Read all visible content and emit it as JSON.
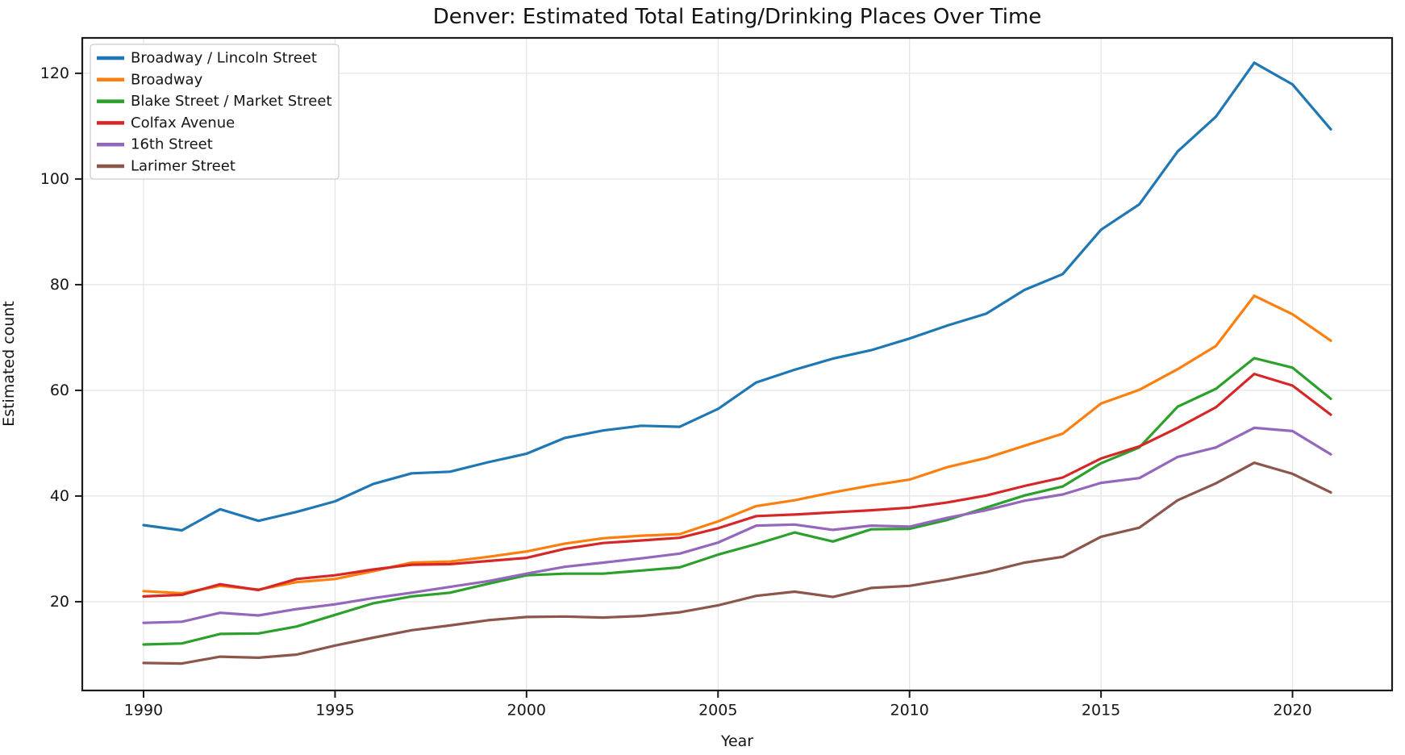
{
  "chart_data": {
    "type": "line",
    "title": "Denver: Estimated Total Eating/Drinking Places Over Time",
    "xlabel": "Year",
    "ylabel": "Estimated count",
    "grid": true,
    "legend_position": "upper left",
    "xlim": [
      1988.4,
      2022.6
    ],
    "ylim": [
      3.2,
      126.7
    ],
    "xtick_values": [
      1990,
      1995,
      2000,
      2005,
      2010,
      2015,
      2020
    ],
    "xtick_labels": [
      "1990",
      "1995",
      "2000",
      "2005",
      "2010",
      "2015",
      "2020"
    ],
    "ytick_values": [
      20,
      40,
      60,
      80,
      100,
      120
    ],
    "ytick_labels": [
      "20",
      "40",
      "60",
      "80",
      "100",
      "120"
    ],
    "x": [
      1990,
      1991,
      1992,
      1993,
      1994,
      1995,
      1996,
      1997,
      1998,
      1999,
      2000,
      2001,
      2002,
      2003,
      2004,
      2005,
      2006,
      2007,
      2008,
      2009,
      2010,
      2011,
      2012,
      2013,
      2014,
      2015,
      2016,
      2017,
      2018,
      2019,
      2020,
      2021
    ],
    "series": [
      {
        "name": "Broadway / Lincoln Street",
        "color": "#1f77b4",
        "values": [
          34.5,
          33.5,
          37.5,
          35.3,
          37.0,
          39.0,
          42.3,
          44.3,
          44.6,
          46.4,
          48.0,
          51.0,
          52.4,
          53.3,
          53.1,
          56.5,
          61.5,
          63.9,
          66.0,
          67.6,
          69.8,
          72.3,
          74.5,
          79.0,
          82.0,
          90.4,
          95.2,
          105.2,
          111.8,
          122.0,
          117.9,
          109.4
        ]
      },
      {
        "name": "Broadway",
        "color": "#ff7f0e",
        "values": [
          22.0,
          21.6,
          23.0,
          22.3,
          23.7,
          24.3,
          25.8,
          27.4,
          27.6,
          28.5,
          29.5,
          31.0,
          32.0,
          32.5,
          32.8,
          35.2,
          38.1,
          39.2,
          40.7,
          42.0,
          43.1,
          45.5,
          47.2,
          49.5,
          51.8,
          57.5,
          60.1,
          64.0,
          68.4,
          77.9,
          74.4,
          69.4
        ]
      },
      {
        "name": "Blake Street / Market Street",
        "color": "#2ca02c",
        "values": [
          11.9,
          12.1,
          13.9,
          14.0,
          15.3,
          17.5,
          19.7,
          21.0,
          21.7,
          23.4,
          25.0,
          25.3,
          25.3,
          25.9,
          26.5,
          28.9,
          30.9,
          33.1,
          31.4,
          33.7,
          33.8,
          35.5,
          37.8,
          40.1,
          41.8,
          46.2,
          49.2,
          56.9,
          60.3,
          66.1,
          64.3,
          58.4
        ]
      },
      {
        "name": "Colfax Avenue",
        "color": "#d62728",
        "values": [
          21.0,
          21.3,
          23.3,
          22.2,
          24.3,
          25.0,
          26.1,
          27.0,
          27.1,
          27.7,
          28.3,
          30.0,
          31.1,
          31.6,
          32.1,
          33.9,
          36.2,
          36.5,
          36.9,
          37.3,
          37.8,
          38.8,
          40.1,
          41.9,
          43.5,
          47.1,
          49.4,
          52.9,
          56.8,
          63.1,
          60.9,
          55.4
        ]
      },
      {
        "name": "16th Street",
        "color": "#9467bd",
        "values": [
          16.0,
          16.2,
          17.9,
          17.4,
          18.6,
          19.5,
          20.7,
          21.7,
          22.8,
          23.9,
          25.3,
          26.6,
          27.4,
          28.2,
          29.1,
          31.2,
          34.4,
          34.6,
          33.6,
          34.4,
          34.2,
          35.9,
          37.3,
          39.1,
          40.3,
          42.5,
          43.4,
          47.4,
          49.2,
          52.9,
          52.3,
          47.9
        ]
      },
      {
        "name": "Larimer Street",
        "color": "#8c564b",
        "values": [
          8.4,
          8.3,
          9.6,
          9.4,
          10.0,
          11.7,
          13.2,
          14.6,
          15.5,
          16.5,
          17.1,
          17.2,
          17.0,
          17.3,
          18.0,
          19.3,
          21.1,
          21.9,
          20.9,
          22.6,
          23.0,
          24.2,
          25.6,
          27.4,
          28.5,
          32.3,
          34.0,
          39.2,
          42.4,
          46.3,
          44.2,
          40.7
        ]
      }
    ],
    "style": {
      "grid_color": "#e6e6e6",
      "spine_color": "#1a1a1a",
      "text_color": "#161616",
      "background_color": "#ffffff",
      "legend_border_color": "#cccccc",
      "line_width": 3.2
    }
  }
}
